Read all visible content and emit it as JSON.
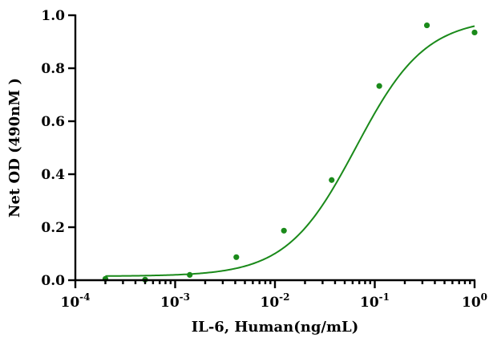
{
  "chart_data": {
    "type": "scatter",
    "title": "",
    "xlabel": "IL-6, Human(ng/mL)",
    "ylabel": "Net OD (490nM )",
    "x_scale": "log",
    "xlim": [
      0.0001,
      1
    ],
    "ylim": [
      0,
      1.0
    ],
    "x_ticks": [
      {
        "base": "10",
        "exp": "-4",
        "value": 0.0001
      },
      {
        "base": "10",
        "exp": "-3",
        "value": 0.001
      },
      {
        "base": "10",
        "exp": "-2",
        "value": 0.01
      },
      {
        "base": "10",
        "exp": "-1",
        "value": 0.1
      },
      {
        "base": "10",
        "exp": "0",
        "value": 1
      }
    ],
    "y_ticks": [
      "0.0",
      "0.2",
      "0.4",
      "0.6",
      "0.8",
      "1.0"
    ],
    "grid": false,
    "legend": "none",
    "color": "#1a8a1a",
    "series": [
      {
        "x": [
          0.0002,
          0.0005,
          0.0014,
          0.0041,
          0.0123,
          0.037,
          0.111,
          0.333,
          1.0
        ],
        "y": [
          0.005,
          0.002,
          0.02,
          0.087,
          0.187,
          0.378,
          0.733,
          0.962,
          0.935
        ]
      }
    ],
    "fit": {
      "model": "4PL",
      "bottom": 0.015,
      "top": 0.99,
      "ec50": 0.065,
      "hill": 1.25
    }
  }
}
